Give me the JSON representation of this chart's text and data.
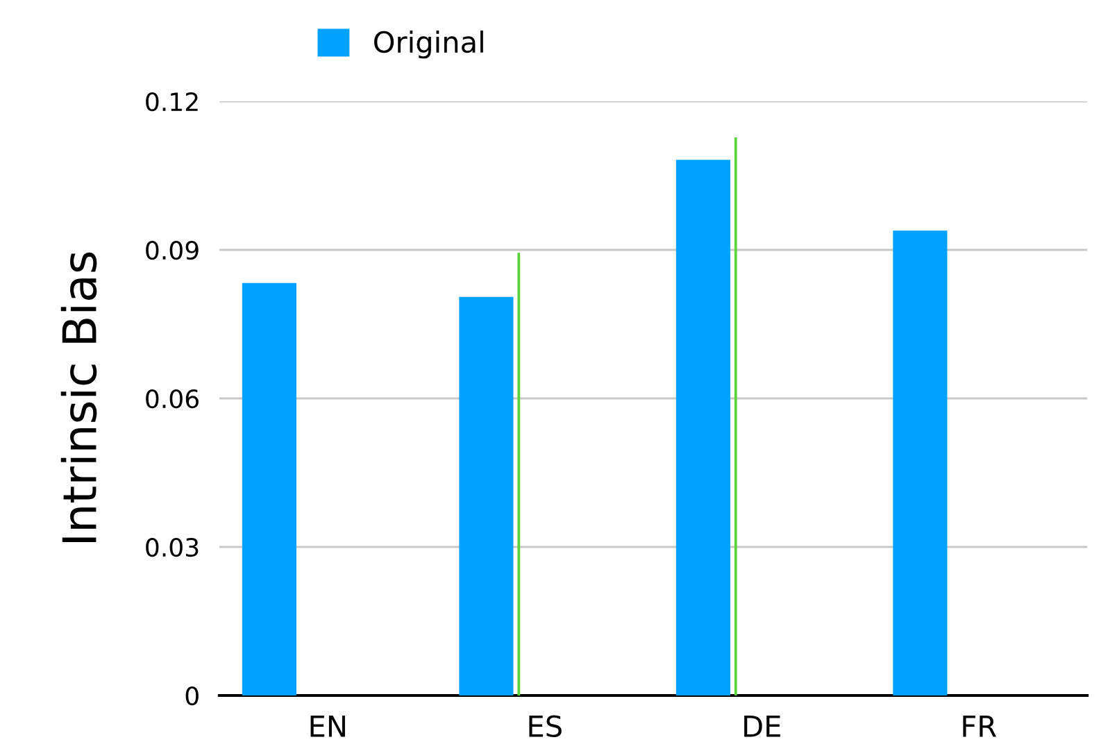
{
  "chart_data": {
    "type": "bar",
    "ylabel": "Intrinsic Bias",
    "categories": [
      "EN",
      "ES",
      "DE",
      "FR"
    ],
    "series": [
      {
        "name": "Original",
        "color": "#00a2ff",
        "values": [
          0.0833,
          0.0805,
          0.1082,
          0.0939
        ]
      },
      {
        "color": "#5ad43a",
        "values": [
          null,
          0.0894,
          0.1127,
          null
        ]
      }
    ],
    "ylim": [
      0,
      0.12
    ],
    "yticks": [
      {
        "value": 0,
        "label": "0"
      },
      0.03,
      0.06,
      0.09,
      0.12
    ],
    "grid": "y",
    "legend": "top"
  }
}
